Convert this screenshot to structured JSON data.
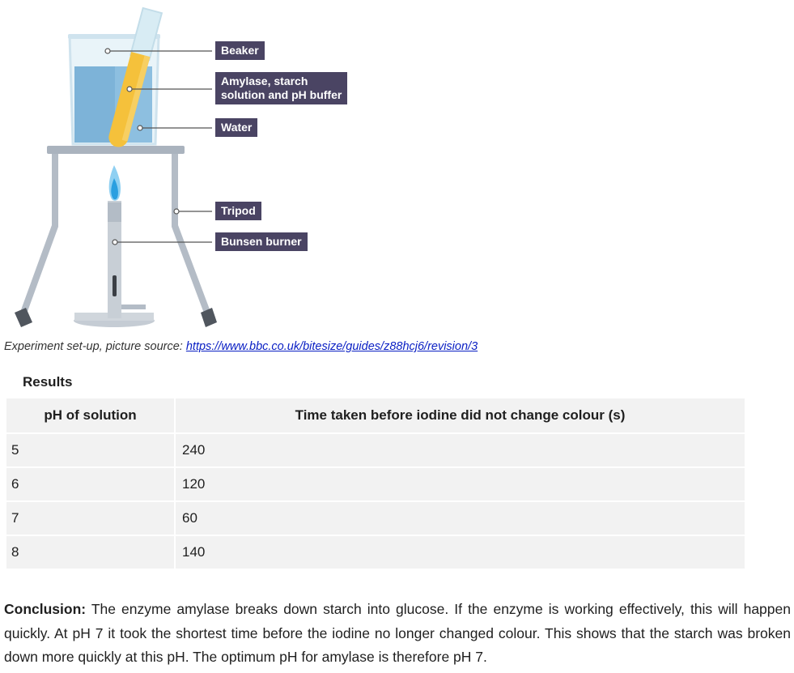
{
  "diagram": {
    "labels": {
      "beaker": "Beaker",
      "amylase": "Amylase, starch\nsolution and pH buffer",
      "water": "Water",
      "tripod": "Tripod",
      "bunsen": "Bunsen burner"
    },
    "colors": {
      "label_bg": "#4a4463",
      "water": "#7db3d8",
      "test_tube": "#f5c13b",
      "flame": "#2a9fe0",
      "tripod": "#b4bcc6"
    }
  },
  "caption": {
    "text": "Experiment set-up, picture source: ",
    "link": "https://www.bbc.co.uk/bitesize/guides/z88hcj6/revision/3"
  },
  "results": {
    "heading": "Results",
    "columns": [
      "pH of solution",
      "Time taken before iodine did not change colour (s)"
    ],
    "rows": [
      [
        "5",
        "240"
      ],
      [
        "6",
        "120"
      ],
      [
        "7",
        "60"
      ],
      [
        "8",
        "140"
      ]
    ]
  },
  "conclusion": {
    "label": "Conclusion:",
    "text": " The enzyme amylase breaks down starch into glucose. If the enzyme is working effectively, this will happen quickly. At pH 7 it took the shortest time before the iodine no longer changed colour. This shows that the starch was broken down more quickly at this pH. The optimum pH for amylase is therefore pH 7."
  }
}
